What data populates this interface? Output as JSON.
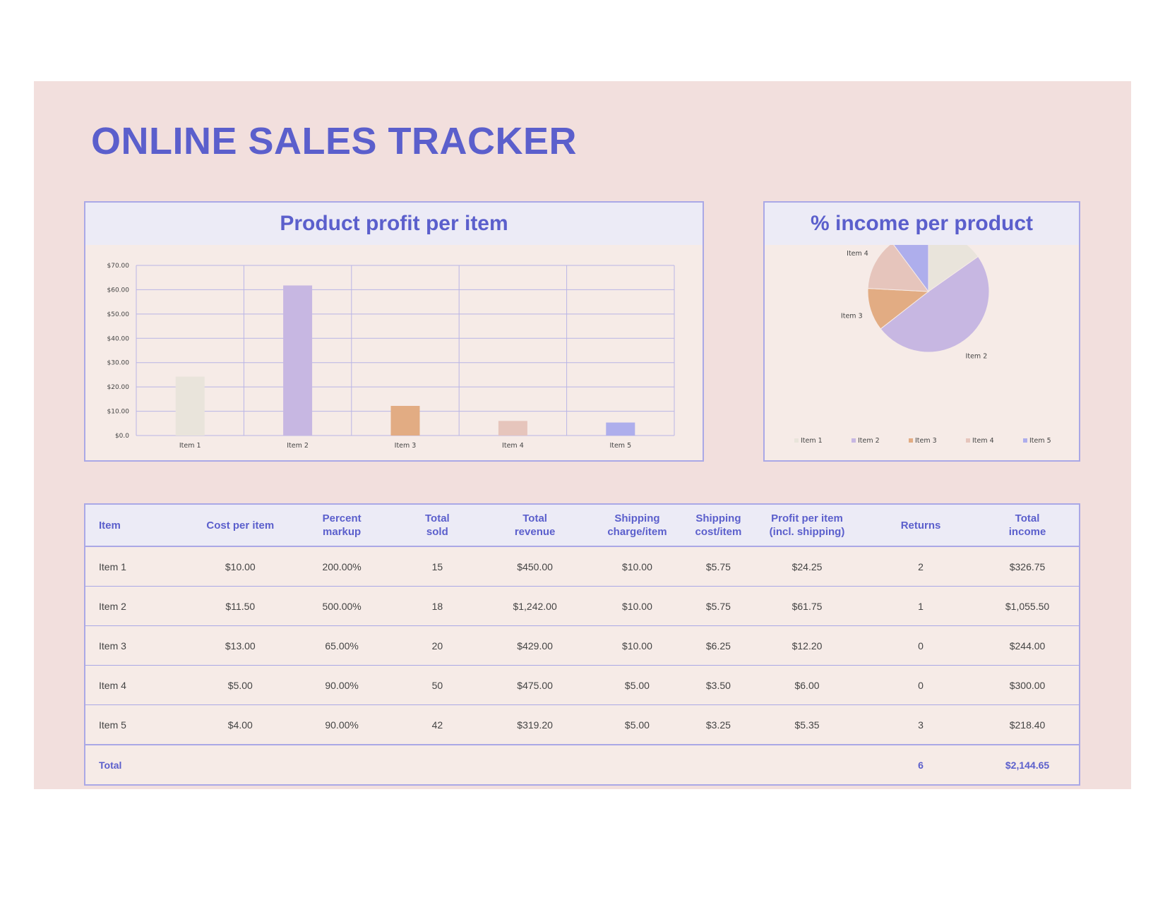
{
  "page": {
    "title": "ONLINE SALES TRACKER"
  },
  "colors": {
    "accent": "#5b5fcc",
    "border": "#aaa8e6",
    "item_1": "#e9e4db",
    "item_2": "#c7b7e2",
    "item_3": "#e2ac83",
    "item_4": "#e6c5bc",
    "item_5": "#aeaeec"
  },
  "chart_data": [
    {
      "type": "bar",
      "title": "Product profit per item",
      "categories": [
        "Item 1",
        "Item 2",
        "Item 3",
        "Item 4",
        "Item 5"
      ],
      "values": [
        24.25,
        61.75,
        12.2,
        6.0,
        5.35
      ],
      "ylim": [
        0,
        70
      ],
      "yticks": [
        "$0.0",
        "$10.00",
        "$20.00",
        "$30.00",
        "$40.00",
        "$50.00",
        "$60.00",
        "$70.00"
      ],
      "grid": true,
      "xlabel": "",
      "ylabel": ""
    },
    {
      "type": "pie",
      "title": "% income per product",
      "labels": [
        "Item 1",
        "Item 2",
        "Item 3",
        "Item 4",
        "Item 5"
      ],
      "values": [
        326.75,
        1055.5,
        244.0,
        300.0,
        218.4
      ],
      "legend": "bottom"
    }
  ],
  "table": {
    "headers": [
      "Item",
      "Cost per item",
      "Percent\nmarkup",
      "Total\nsold",
      "Total\nrevenue",
      "Shipping\ncharge/item",
      "Shipping\ncost/item",
      "Profit per item\n(incl. shipping)",
      "Returns",
      "Total\nincome"
    ],
    "rows": [
      [
        "Item 1",
        "$10.00",
        "200.00%",
        "15",
        "$450.00",
        "$10.00",
        "$5.75",
        "$24.25",
        "2",
        "$326.75"
      ],
      [
        "Item 2",
        "$11.50",
        "500.00%",
        "18",
        "$1,242.00",
        "$10.00",
        "$5.75",
        "$61.75",
        "1",
        "$1,055.50"
      ],
      [
        "Item 3",
        "$13.00",
        "65.00%",
        "20",
        "$429.00",
        "$10.00",
        "$6.25",
        "$12.20",
        "0",
        "$244.00"
      ],
      [
        "Item 4",
        "$5.00",
        "90.00%",
        "50",
        "$475.00",
        "$5.00",
        "$3.50",
        "$6.00",
        "0",
        "$300.00"
      ],
      [
        "Item 5",
        "$4.00",
        "90.00%",
        "42",
        "$319.20",
        "$5.00",
        "$3.25",
        "$5.35",
        "3",
        "$218.40"
      ]
    ],
    "total": [
      "Total",
      "",
      "",
      "",
      "",
      "",
      "",
      "",
      "6",
      "$2,144.65"
    ]
  }
}
